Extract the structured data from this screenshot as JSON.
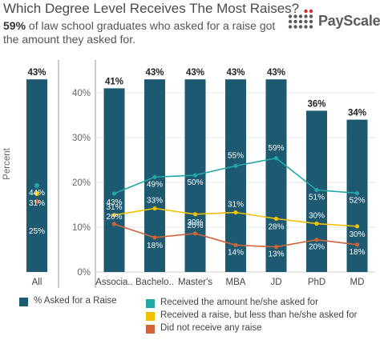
{
  "title": "Which Degree Level Receives The Most Raises?",
  "subtitle_bold": "59%",
  "subtitle_rest": " of law school graduates who asked for a raise got the amount they asked for.",
  "logo": {
    "text": "PayScale",
    "accent": "#d62b2b",
    "dots_color": "#5b5b5b"
  },
  "colors": {
    "bar": "#1d5a72",
    "series_teal": "#22a6a6",
    "series_yellow": "#f2c200",
    "series_orange": "#d2643a"
  },
  "chart_data": {
    "type": "bar",
    "ylabel": "Percent",
    "ylim": [
      0,
      45
    ],
    "yticks": [
      "0%",
      "10%",
      "20%",
      "30%",
      "40%"
    ],
    "all_panel": {
      "category": "All",
      "bar_value": 43,
      "bar_label": "43%",
      "points": [
        {
          "value": 44,
          "label": "44%"
        },
        {
          "value": 31,
          "label": "31%"
        },
        {
          "value": 25,
          "label": "25%"
        }
      ]
    },
    "categories": [
      "Associa..",
      "Bachelo..",
      "Master's",
      "MBA",
      "JD",
      "PhD",
      "MD"
    ],
    "bar_series": {
      "name": "% Asked for a Raise",
      "values": [
        41,
        43,
        43,
        43,
        43,
        36,
        34
      ],
      "labels": [
        "41%",
        "43%",
        "43%",
        "43%",
        "43%",
        "36%",
        "34%"
      ]
    },
    "line_series": [
      {
        "name": "Received the amount he/she asked for",
        "y_plot": [
          17.5,
          21.2,
          21.6,
          23.7,
          25.4,
          18.3,
          17.6
        ],
        "labels": [
          "43%",
          "49%",
          "50%",
          "55%",
          "59%",
          "51%",
          "52%"
        ]
      },
      {
        "name": "Received a raise, but less than he/she asked for",
        "y_plot": [
          12.7,
          14.2,
          12.9,
          13.3,
          11.9,
          10.8,
          10.2
        ],
        "labels": [
          "31%",
          "33%",
          "30%",
          "31%",
          "28%",
          "30%",
          "30%"
        ]
      },
      {
        "name": "Did not receive any raise",
        "y_plot": [
          10.7,
          7.7,
          8.6,
          6.0,
          5.6,
          7.2,
          6.1
        ],
        "labels": [
          "26%",
          "18%",
          "20%",
          "14%",
          "13%",
          "20%",
          "18%"
        ]
      }
    ]
  }
}
